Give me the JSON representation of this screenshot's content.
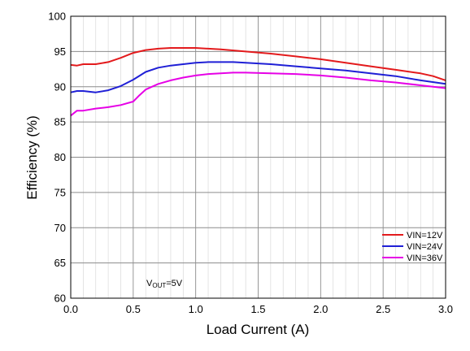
{
  "chart_data": {
    "type": "line",
    "xlabel": "Load Current (A)",
    "ylabel": "Efficiency (%)",
    "xlim": [
      0,
      3.0
    ],
    "ylim": [
      60,
      100
    ],
    "x_ticks": [
      "0.0",
      "0.5",
      "1.0",
      "1.5",
      "2.0",
      "2.5",
      "3.0"
    ],
    "y_ticks": [
      "60",
      "65",
      "70",
      "75",
      "80",
      "85",
      "90",
      "95",
      "100"
    ],
    "grid": true,
    "legend_position": "bottom-right",
    "annotation": {
      "main": "V",
      "sub": "OUT",
      "rest": "=5V"
    },
    "series": [
      {
        "name": "VIN=12V",
        "color": "#e31a1c",
        "x": [
          0,
          0.05,
          0.1,
          0.2,
          0.3,
          0.4,
          0.5,
          0.6,
          0.7,
          0.8,
          0.9,
          1.0,
          1.2,
          1.4,
          1.6,
          1.8,
          2.0,
          2.2,
          2.4,
          2.6,
          2.8,
          2.9,
          3.0
        ],
        "values": [
          93.1,
          93.0,
          93.2,
          93.2,
          93.5,
          94.1,
          94.8,
          95.2,
          95.4,
          95.5,
          95.5,
          95.5,
          95.3,
          95.0,
          94.7,
          94.3,
          93.9,
          93.4,
          92.9,
          92.4,
          91.9,
          91.5,
          90.9
        ]
      },
      {
        "name": "VIN=24V",
        "color": "#1f1fd6",
        "x": [
          0,
          0.05,
          0.1,
          0.2,
          0.3,
          0.4,
          0.5,
          0.6,
          0.7,
          0.8,
          0.9,
          1.0,
          1.1,
          1.2,
          1.3,
          1.4,
          1.6,
          1.8,
          2.0,
          2.2,
          2.4,
          2.6,
          2.8,
          3.0
        ],
        "values": [
          89.2,
          89.4,
          89.4,
          89.2,
          89.5,
          90.1,
          91.0,
          92.1,
          92.7,
          93.0,
          93.2,
          93.4,
          93.5,
          93.5,
          93.5,
          93.4,
          93.2,
          92.9,
          92.6,
          92.3,
          91.9,
          91.5,
          90.9,
          90.4
        ]
      },
      {
        "name": "VIN=36V",
        "color": "#e600e6",
        "x": [
          0,
          0.05,
          0.1,
          0.2,
          0.3,
          0.4,
          0.5,
          0.55,
          0.6,
          0.7,
          0.8,
          0.9,
          1.0,
          1.1,
          1.2,
          1.3,
          1.4,
          1.6,
          1.8,
          2.0,
          2.2,
          2.4,
          2.6,
          2.8,
          3.0
        ],
        "values": [
          85.9,
          86.6,
          86.6,
          86.9,
          87.1,
          87.4,
          87.9,
          88.8,
          89.6,
          90.4,
          90.9,
          91.3,
          91.6,
          91.8,
          91.9,
          92.0,
          92.0,
          91.9,
          91.8,
          91.6,
          91.3,
          90.9,
          90.6,
          90.2,
          89.8
        ]
      }
    ]
  }
}
